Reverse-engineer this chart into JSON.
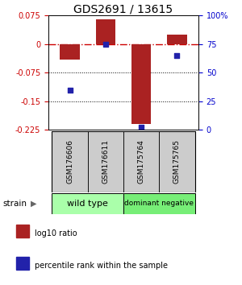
{
  "title": "GDS2691 / 13615",
  "samples": [
    "GSM176606",
    "GSM176611",
    "GSM175764",
    "GSM175765"
  ],
  "log10_ratios": [
    -0.04,
    0.065,
    -0.21,
    0.025
  ],
  "percentile_ranks": [
    35,
    75,
    2,
    65
  ],
  "ylim_left": [
    -0.225,
    0.075
  ],
  "ylim_right": [
    0,
    100
  ],
  "yticks_left": [
    0.075,
    0,
    -0.075,
    -0.15,
    -0.225
  ],
  "ytick_labels_left": [
    "0.075",
    "0",
    "-0.075",
    "-0.15",
    "-0.225"
  ],
  "yticks_right": [
    100,
    75,
    50,
    25,
    0
  ],
  "ytick_labels_right": [
    "100%",
    "75",
    "50",
    "25",
    "0"
  ],
  "bar_color": "#aa2222",
  "dot_color": "#2222aa",
  "bar_width": 0.55,
  "groups": [
    {
      "label": "wild type",
      "cols": [
        0,
        1
      ],
      "color": "#aaffaa"
    },
    {
      "label": "dominant negative",
      "cols": [
        2,
        3
      ],
      "color": "#77ee77"
    }
  ],
  "strain_label": "strain",
  "legend_items": [
    {
      "color": "#aa2222",
      "label": "log10 ratio"
    },
    {
      "color": "#2222aa",
      "label": "percentile rank within the sample"
    }
  ],
  "background_color": "#ffffff",
  "zero_line_color": "#cc0000",
  "dotted_line_color": "#000000",
  "sample_box_color": "#cccccc",
  "title_fontsize": 10,
  "tick_fontsize": 7,
  "sample_fontsize": 6.5,
  "group_fontsize_wt": 8,
  "group_fontsize_dn": 6.5,
  "legend_fontsize": 7
}
